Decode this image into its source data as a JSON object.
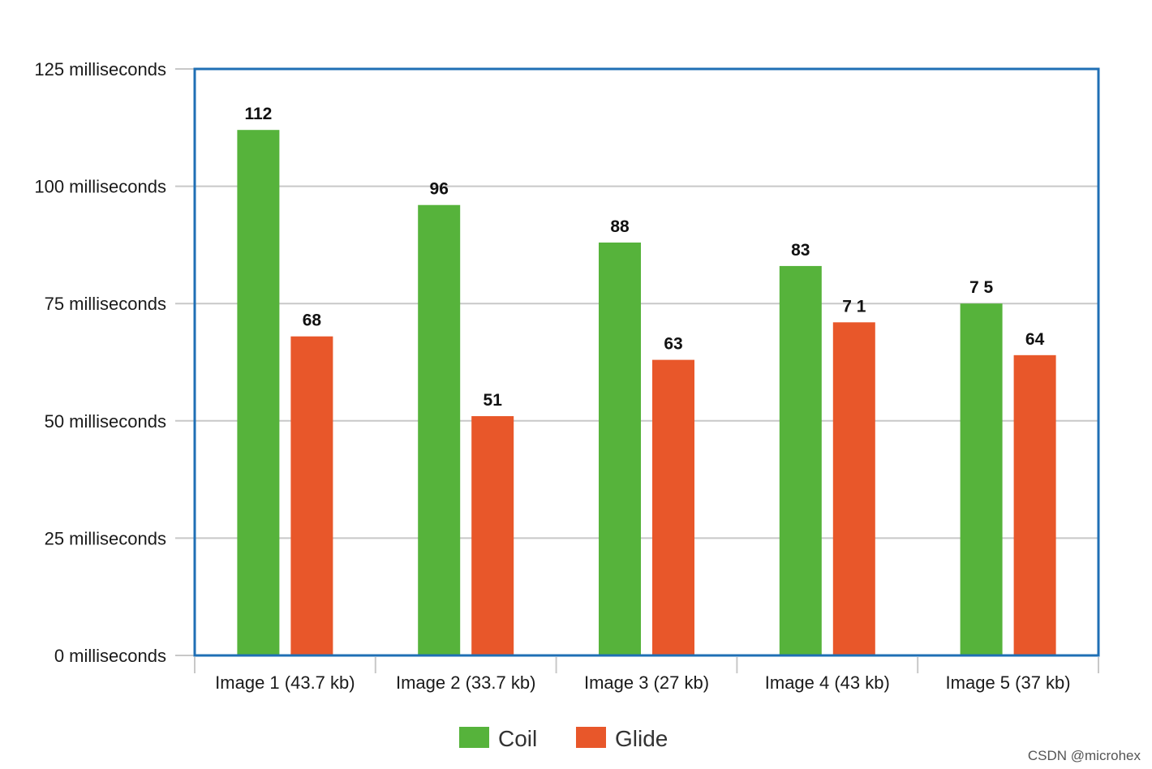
{
  "chart_data": {
    "type": "bar",
    "categories": [
      "Image 1 (43.7 kb)",
      "Image 2 (33.7 kb)",
      "Image 3 (27 kb)",
      "Image 4 (43 kb)",
      "Image 5 (37 kb)"
    ],
    "series": [
      {
        "name": "Coil",
        "values": [
          112,
          96,
          88,
          83,
          75
        ],
        "labels": [
          "112",
          "96",
          "88",
          "83",
          "7 5"
        ],
        "color": "#56b33b"
      },
      {
        "name": "Glide",
        "values": [
          68,
          51,
          63,
          71,
          64
        ],
        "labels": [
          "68",
          "51",
          "63",
          "7 1",
          "64"
        ],
        "color": "#e8572a"
      }
    ],
    "ylim": [
      0,
      125
    ],
    "yticks": [
      0,
      25,
      50,
      75,
      100,
      125
    ],
    "ytick_labels": [
      "0 milliseconds",
      "25 milliseconds",
      "50 milliseconds",
      "75 milliseconds",
      "100 milliseconds",
      "125 milliseconds"
    ],
    "title": "",
    "xlabel": "",
    "ylabel": "",
    "grid": true,
    "legend": "bottom-center",
    "frame_color": "#1f6fb5"
  },
  "watermark": "CSDN @microhex"
}
